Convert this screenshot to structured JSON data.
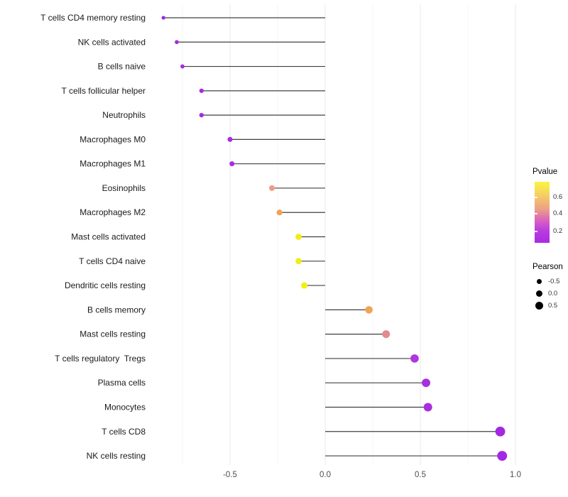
{
  "chart_data": {
    "type": "lollipop",
    "title": "",
    "xlabel": "",
    "ylabel": "",
    "x_ticks": [
      -0.5,
      0.0,
      0.5,
      1.0
    ],
    "x_tick_labels": [
      "-0.5",
      "0.0",
      "0.5",
      "1.0"
    ],
    "x_minor_ticks": [
      -0.75,
      -0.25,
      0.25,
      0.75
    ],
    "xlim": [
      -0.92,
      1.02
    ],
    "baseline_x": 0,
    "grid": "vertical major+minor, no axis lines, no ticks (theme_minimal)",
    "legend_position": "right",
    "points": [
      {
        "label": "T cells CD4 memory resting",
        "pearson": -0.85,
        "pvalue_est": 0.03,
        "color": "#9E2BD6"
      },
      {
        "label": "NK cells activated",
        "pearson": -0.78,
        "pvalue_est": 0.04,
        "color": "#A42CDB"
      },
      {
        "label": "B cells naive",
        "pearson": -0.75,
        "pvalue_est": 0.04,
        "color": "#A42CDB"
      },
      {
        "label": "T cells follicular helper",
        "pearson": -0.65,
        "pvalue_est": 0.06,
        "color": "#A62CDE"
      },
      {
        "label": "Neutrophils",
        "pearson": -0.65,
        "pvalue_est": 0.06,
        "color": "#A62CDE"
      },
      {
        "label": "Macrophages M0",
        "pearson": -0.5,
        "pvalue_est": 0.09,
        "color": "#A82DE0"
      },
      {
        "label": "Macrophages M1",
        "pearson": -0.49,
        "pvalue_est": 0.09,
        "color": "#A82DE0"
      },
      {
        "label": "Eosinophils",
        "pearson": -0.28,
        "pvalue_est": 0.45,
        "color": "#EC9E85"
      },
      {
        "label": "Macrophages M2",
        "pearson": -0.24,
        "pvalue_est": 0.5,
        "color": "#F0A355"
      },
      {
        "label": "Mast cells activated",
        "pearson": -0.14,
        "pvalue_est": 0.68,
        "color": "#F2EC15"
      },
      {
        "label": "T cells CD4 naive",
        "pearson": -0.14,
        "pvalue_est": 0.68,
        "color": "#F2EC15"
      },
      {
        "label": "Dendritic cells resting",
        "pearson": -0.11,
        "pvalue_est": 0.72,
        "color": "#F3F00C"
      },
      {
        "label": "B cells memory",
        "pearson": 0.23,
        "pvalue_est": 0.5,
        "color": "#F0A455"
      },
      {
        "label": "Mast cells resting",
        "pearson": 0.32,
        "pvalue_est": 0.38,
        "color": "#E18A92"
      },
      {
        "label": "T cells regulatory  Tregs",
        "pearson": 0.47,
        "pvalue_est": 0.1,
        "color": "#B036DD"
      },
      {
        "label": "Plasma cells",
        "pearson": 0.53,
        "pvalue_est": 0.08,
        "color": "#AA2EDF"
      },
      {
        "label": "Monocytes",
        "pearson": 0.54,
        "pvalue_est": 0.08,
        "color": "#AA2EDF"
      },
      {
        "label": "T cells CD8",
        "pearson": 0.92,
        "pvalue_est": 0.02,
        "color": "#A428E2"
      },
      {
        "label": "NK cells resting",
        "pearson": 0.93,
        "pvalue_est": 0.02,
        "color": "#A428E2"
      }
    ],
    "legend_pvalue": {
      "title": "Pvalue",
      "tick_labels": [
        "0.6",
        "0.4",
        "0.2"
      ],
      "gradient_stops": [
        "#FAF53F 0%",
        "#F5CE63 22%",
        "#EC9F87 45%",
        "#D863BE 63%",
        "#BB3CE0 80%",
        "#A82BE2 100%"
      ]
    },
    "legend_pearson": {
      "title": "Pearson",
      "entries": [
        {
          "label": "-0.5",
          "diameter": 7
        },
        {
          "label": "0.0",
          "diameter": 9
        },
        {
          "label": "0.5",
          "diameter": 11
        }
      ],
      "dot_color": "#000000"
    },
    "style": {
      "stem_color": "#404040",
      "grid_major_color": "#E9E9E9",
      "grid_minor_color": "#F4F4F4",
      "axis_text_color": "#4D4D4D",
      "y_label_color": "#1A1A1A",
      "background": "#FFFFFF"
    }
  }
}
